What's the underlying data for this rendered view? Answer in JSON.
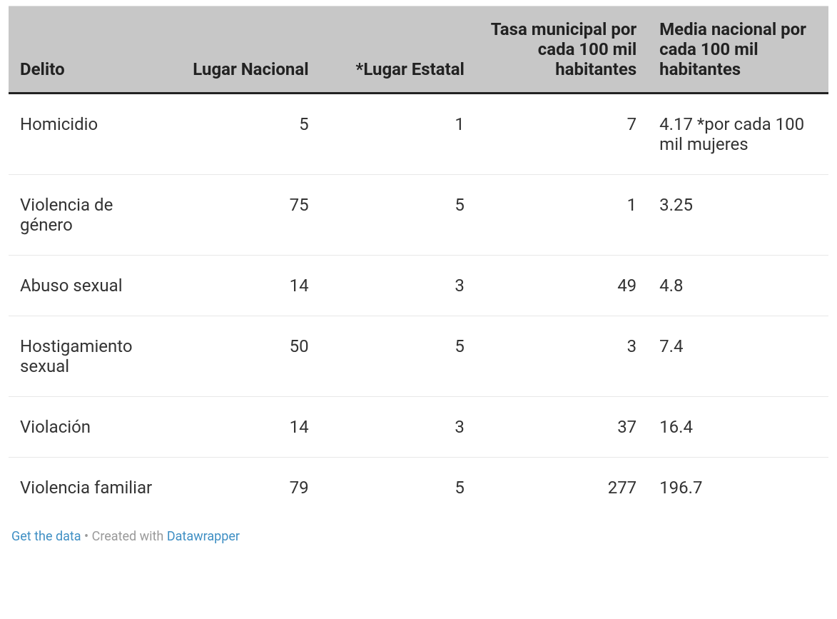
{
  "table": {
    "columns": [
      {
        "label": "Delito",
        "align": "left"
      },
      {
        "label": "Lugar Nacional",
        "align": "right"
      },
      {
        "label": "*Lugar Estatal",
        "align": "right"
      },
      {
        "label": "Tasa municipal por cada 100 mil habitantes",
        "align": "right"
      },
      {
        "label": "Media nacional por cada 100 mil habitantes",
        "align": "left"
      }
    ],
    "rows": [
      {
        "delito": "Homicidio",
        "lugar_nacional": "5",
        "lugar_estatal": "1",
        "tasa_municipal": "7",
        "media_nacional": "4.17 *por cada 100 mil mujeres"
      },
      {
        "delito": "Violencia de género",
        "lugar_nacional": "75",
        "lugar_estatal": "5",
        "tasa_municipal": "1",
        "media_nacional": "3.25"
      },
      {
        "delito": "Abuso sexual",
        "lugar_nacional": "14",
        "lugar_estatal": "3",
        "tasa_municipal": "49",
        "media_nacional": "4.8"
      },
      {
        "delito": "Hostigamiento sexual",
        "lugar_nacional": "50",
        "lugar_estatal": "5",
        "tasa_municipal": "3",
        "media_nacional": "7.4"
      },
      {
        "delito": "Violación",
        "lugar_nacional": "14",
        "lugar_estatal": "3",
        "tasa_municipal": "37",
        "media_nacional": "16.4"
      },
      {
        "delito": "Violencia familiar",
        "lugar_nacional": "79",
        "lugar_estatal": "5",
        "tasa_municipal": "277",
        "media_nacional": "196.7"
      }
    ],
    "header_bg": "#c7c7c7",
    "header_border": "#222222",
    "row_border": "#e8e8e8",
    "text_color": "#333333",
    "link_color": "#3f8fc4",
    "muted_color": "#999999"
  },
  "footer": {
    "get_data_label": "Get the data",
    "created_with_prefix": "Created with",
    "created_with_name": "Datawrapper",
    "separator": " • "
  }
}
